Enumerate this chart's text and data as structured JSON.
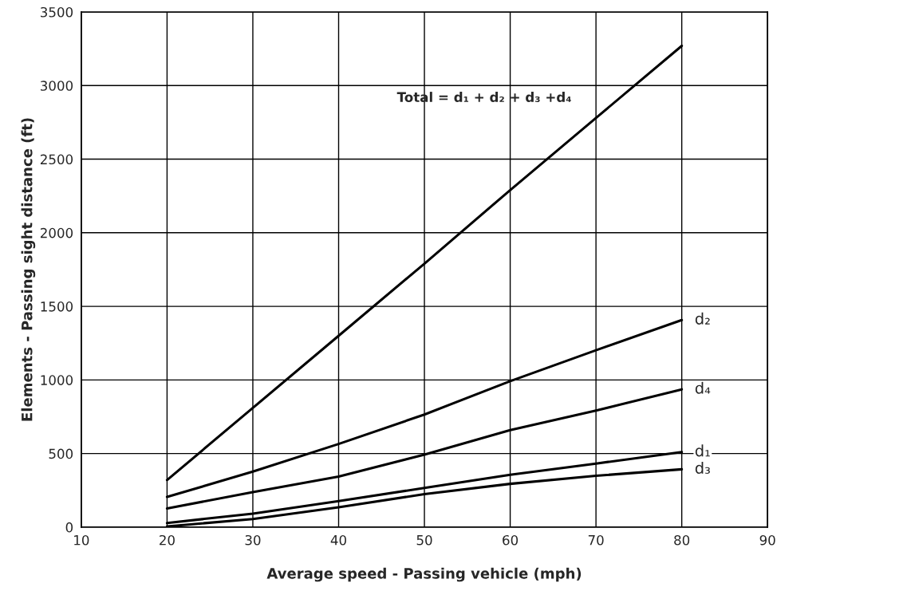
{
  "chart_data": {
    "type": "line",
    "xlabel": "Average speed - Passing vehicle (mph)",
    "ylabel": "Elements - Passing sight distance (ft)",
    "x": [
      20,
      30,
      40,
      50,
      60,
      70,
      80
    ],
    "series": [
      {
        "name": "Total = d₁ + d₂ + d₃ +d₄",
        "color": "#000000",
        "values": [
          320,
          810,
          1300,
          1790,
          2290,
          2780,
          3270
        ]
      },
      {
        "name": "d₂",
        "color": "#000000",
        "values": [
          205,
          377,
          565,
          765,
          992,
          1202,
          1407
        ]
      },
      {
        "name": "d₄",
        "color": "#000000",
        "values": [
          127,
          238,
          343,
          493,
          659,
          792,
          936
        ]
      },
      {
        "name": "d₁",
        "color": "#000000",
        "values": [
          28,
          92,
          177,
          266,
          356,
          432,
          510
        ]
      },
      {
        "name": "d₃",
        "color": "#000000",
        "values": [
          5,
          55,
          135,
          224,
          294,
          349,
          393
        ]
      }
    ],
    "xlim": [
      10,
      90
    ],
    "xticks": [
      10,
      20,
      30,
      40,
      50,
      60,
      70,
      80,
      90
    ],
    "ylim": [
      0,
      3500
    ],
    "yticks": [
      0,
      500,
      1000,
      1500,
      2000,
      2500,
      3000,
      3500
    ],
    "grid": true,
    "marker": "none",
    "line_style": "solid",
    "legend": false
  }
}
